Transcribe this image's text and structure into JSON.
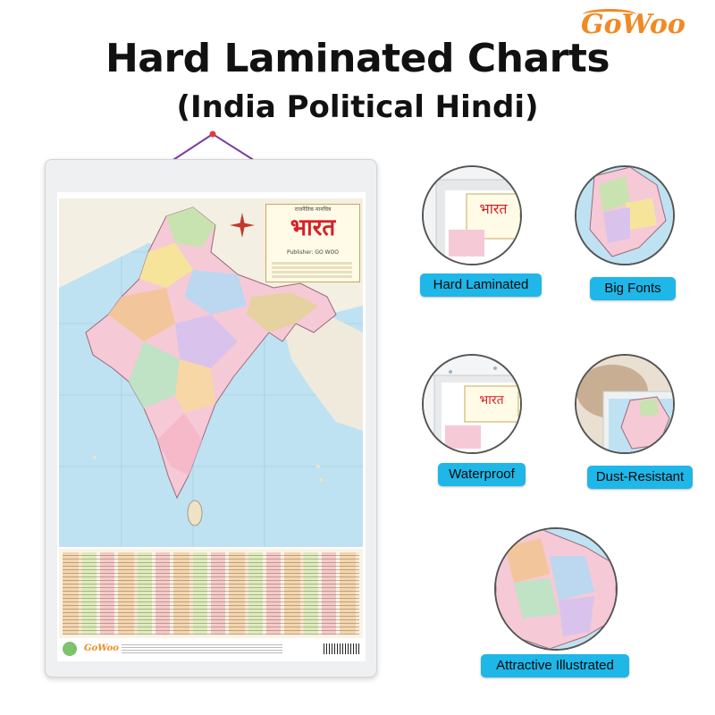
{
  "brand": {
    "logo_text": "GoWoo",
    "color": "#f08a24"
  },
  "header": {
    "title": "Hard Laminated Charts",
    "subtitle": "(India Political Hindi)"
  },
  "poster": {
    "heading_hindi": "भारत",
    "heading_small": "राजनैतिक मानचित्र",
    "publisher_line": "Publisher: GO WOO"
  },
  "features": [
    {
      "label": "Hard Laminated"
    },
    {
      "label": "Big Fonts"
    },
    {
      "label": "Waterproof"
    },
    {
      "label": "Dust-Resistant"
    },
    {
      "label": "Attractive Illustrated"
    }
  ],
  "colors": {
    "label_bg": "#1fb6e8",
    "title": "#111111"
  }
}
